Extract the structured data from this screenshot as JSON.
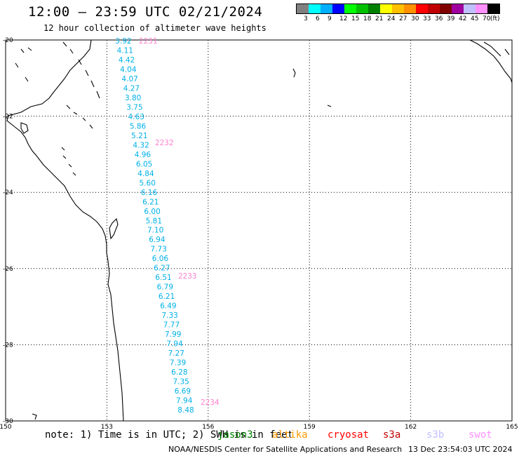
{
  "header": {
    "title": "12:00 – 23:59 UTC 02/21/2024",
    "subtitle": "12 hour collection of altimeter wave heights"
  },
  "legend": {
    "colors": [
      "#808080",
      "#00ffff",
      "#00b0ff",
      "#0000ff",
      "#00ff00",
      "#00c000",
      "#008000",
      "#ffff00",
      "#ffc000",
      "#ff9000",
      "#ff0000",
      "#c00000",
      "#800000",
      "#a000a0",
      "#c0c0ff",
      "#ff90ff",
      "#000000"
    ],
    "labels": [
      "3",
      "6",
      "9",
      "12",
      "15",
      "18",
      "21",
      "24",
      "27",
      "30",
      "33",
      "36",
      "39",
      "42",
      "45",
      "70",
      "(ft)"
    ]
  },
  "axes": {
    "lat_labels": [
      "-20",
      "-22",
      "-24",
      "-26",
      "-28",
      "-30"
    ],
    "lon_labels": [
      "150",
      "153",
      "156",
      "159",
      "162",
      "165"
    ]
  },
  "track": {
    "color": "#00b0e8",
    "time_color": "#ff80d0",
    "heights": [
      "3.92",
      "4.11",
      "4.42",
      "4.04",
      "4.07",
      "4.27",
      "3.80",
      "3.75",
      "4.63",
      "5.86",
      "5.21",
      "4.32",
      "4.96",
      "6.05",
      "4.84",
      "5.60",
      "6.16",
      "6.21",
      "6.00",
      "5.81",
      "7.10",
      "6.94",
      "7.73",
      "6.06",
      "6.27",
      "6.51",
      "6.79",
      "6.21",
      "6.49",
      "7.33",
      "7.77",
      "7.99",
      "7.94",
      "7.27",
      "7.39",
      "6.28",
      "7.35",
      "6.69",
      "7.94",
      "8.48"
    ],
    "times": [
      "2231",
      "2232",
      "2233",
      "2234"
    ]
  },
  "footer": {
    "note": "note: 1) Time is in UTC; 2) SWH is in feet",
    "satellites": [
      {
        "name": "jason3",
        "color": "#008000"
      },
      {
        "name": "altika",
        "color": "#ff9900"
      },
      {
        "name": "cryosat",
        "color": "#ff0000"
      },
      {
        "name": "s3a",
        "color": "#c00000"
      },
      {
        "name": "s3b",
        "color": "#c0c0ff"
      },
      {
        "name": "swot",
        "color": "#ff90ff"
      }
    ],
    "credit": "NOAA/NESDIS Center for Satellite Applications and Research",
    "timestamp": "13 Dec 23:54:03 UTC 2024"
  }
}
